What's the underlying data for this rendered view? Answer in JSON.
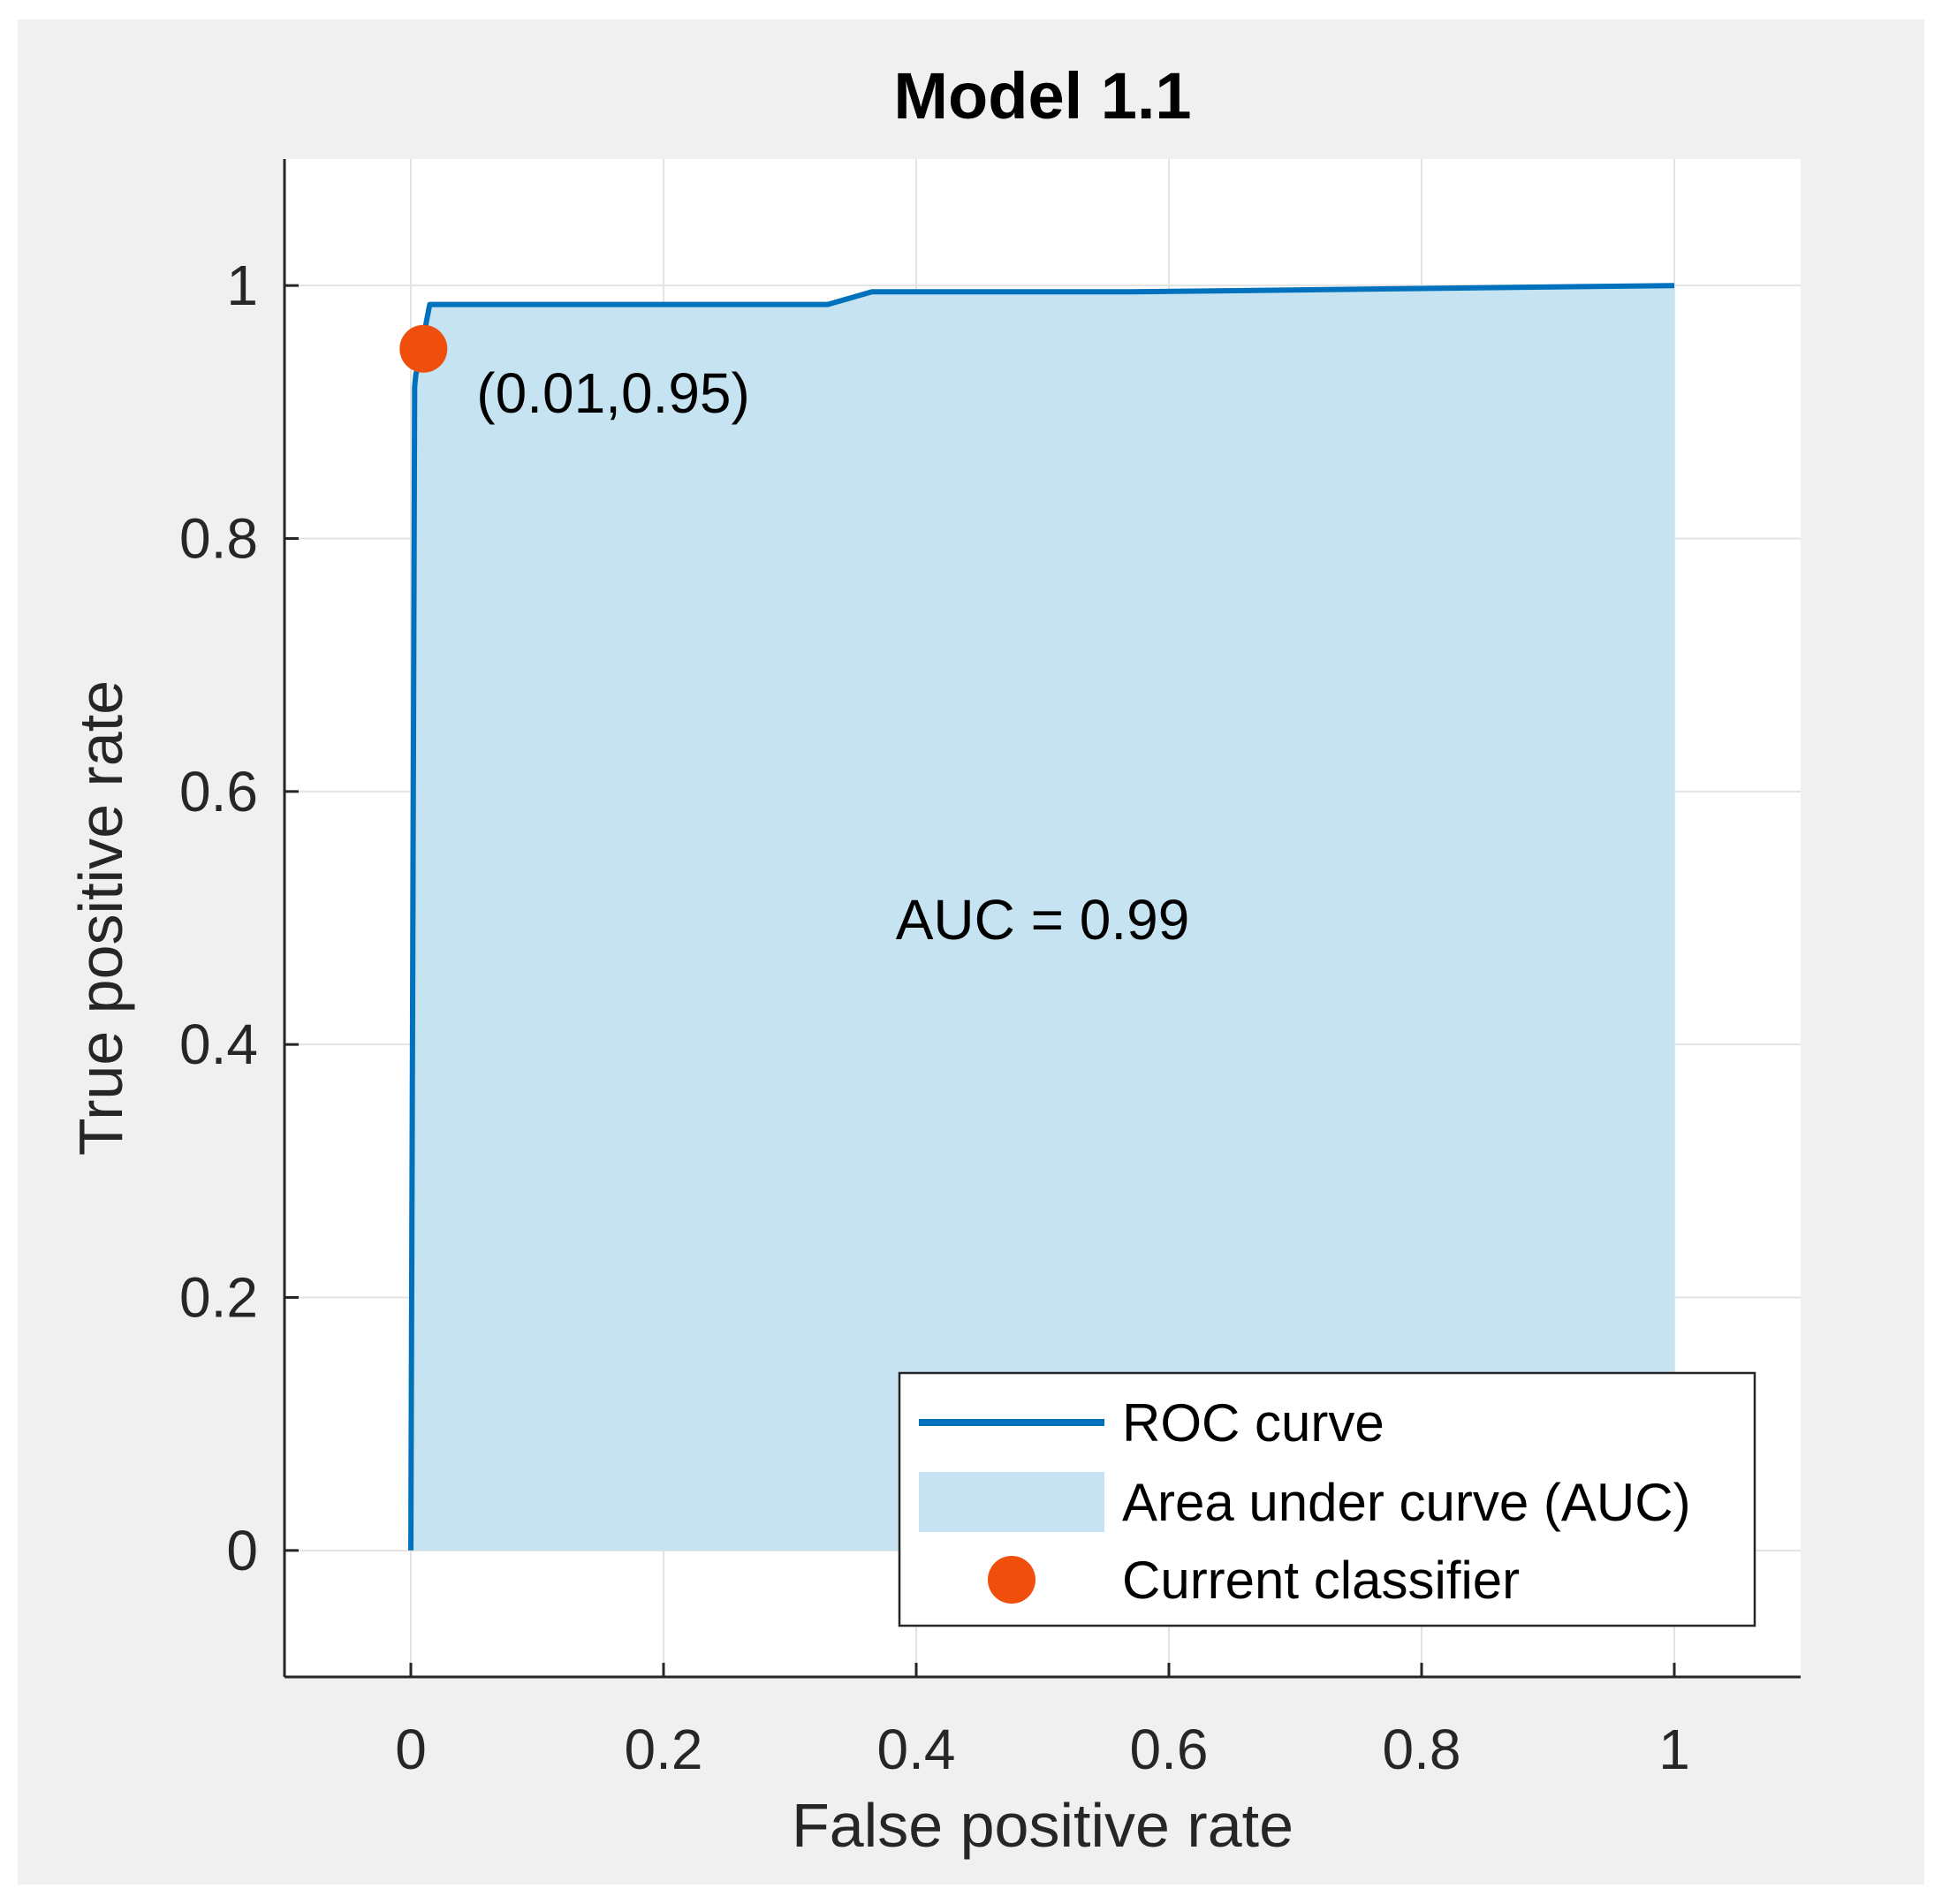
{
  "chart_data": {
    "type": "line",
    "title": "Model 1.1",
    "xlabel": "False positive rate",
    "ylabel": "True positive rate",
    "xlim": [
      -0.1,
      1.1
    ],
    "ylim": [
      -0.1,
      1.1
    ],
    "grid": true,
    "x_ticks": [
      0,
      0.2,
      0.4,
      0.6,
      0.8,
      1
    ],
    "x_tick_labels": [
      "0",
      "0.2",
      "0.4",
      "0.6",
      "0.8",
      "1"
    ],
    "y_ticks": [
      0,
      0.2,
      0.4,
      0.6,
      0.8,
      1
    ],
    "y_tick_labels": [
      "0",
      "0.2",
      "0.4",
      "0.6",
      "0.8",
      "1"
    ],
    "series": [
      {
        "name": "ROC curve",
        "color": "#0072bd",
        "x": [
          0,
          0.001,
          0.003,
          0.004,
          0.01,
          0.012,
          0.015,
          0.33,
          0.365,
          0.57,
          1.0
        ],
        "y": [
          0,
          0.3,
          0.92,
          0.93,
          0.95,
          0.97,
          0.985,
          0.985,
          0.995,
          0.995,
          1.0
        ]
      }
    ],
    "area": {
      "name": "Area under curve (AUC)",
      "color": "#c5e3f1"
    },
    "current_classifier": {
      "name": "Current classifier",
      "x": 0.01,
      "y": 0.95,
      "color": "#f04e0c"
    },
    "annotations": {
      "point_label": "(0.01,0.95)",
      "auc_label": "AUC = 0.99"
    },
    "legend": {
      "placement": "bottom-right",
      "entries": [
        "ROC curve",
        "Area under curve (AUC)",
        "Current classifier"
      ]
    }
  }
}
